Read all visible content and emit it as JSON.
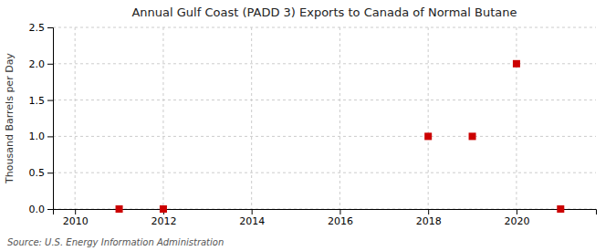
{
  "chart_data": {
    "type": "scatter",
    "title": "Annual Gulf Coast (PADD 3) Exports to Canada of Normal Butane",
    "ylabel": "Thousand Barrels per Day",
    "source": "Source: U.S. Energy Information Administration",
    "x": [
      2011,
      2012,
      2018,
      2019,
      2020,
      2021
    ],
    "values": [
      0.0,
      0.0,
      1.0,
      1.0,
      2.0,
      0.0
    ],
    "color": "#cc0000",
    "marker": "square",
    "xlim": [
      2009.5,
      2021.8
    ],
    "ylim": [
      0,
      2.5
    ],
    "xticks": [
      2010,
      2012,
      2014,
      2016,
      2018,
      2020
    ],
    "yticks": [
      {
        "value": 0,
        "label": "0.0"
      },
      0.5,
      {
        "value": 1,
        "label": "1.0"
      },
      1.5,
      {
        "value": 2,
        "label": "2.0"
      },
      2.5
    ],
    "grid": true
  }
}
